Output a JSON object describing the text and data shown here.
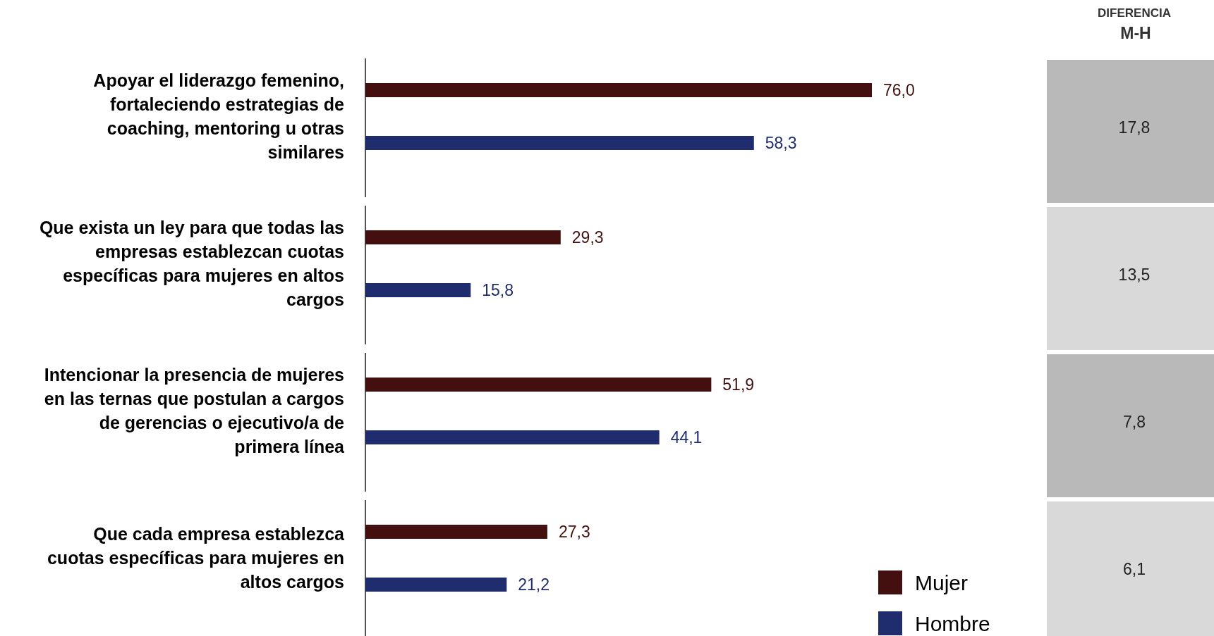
{
  "chart_data": {
    "type": "bar",
    "orientation": "horizontal",
    "categories": [
      "Apoyar el liderazgo femenino, fortaleciendo estrategias de coaching, mentoring u otras similares",
      "Que exista un ley para que todas las empresas establezcan cuotas específicas para mujeres en altos cargos",
      "Intencionar la presencia de mujeres en las ternas que postulan a cargos de gerencias o ejecutivo/a de primera línea",
      "Que cada empresa establezca cuotas específicas para mujeres en altos cargos"
    ],
    "series": [
      {
        "name": "Mujer",
        "color": "#44100f",
        "values": [
          76.0,
          29.3,
          51.9,
          27.3
        ],
        "value_labels": [
          "76,0",
          "29,3",
          "51,9",
          "27,3"
        ]
      },
      {
        "name": "Hombre",
        "color": "#1f2c6e",
        "values": [
          58.3,
          15.8,
          44.1,
          21.2
        ],
        "value_labels": [
          "58,3",
          "15,8",
          "44,1",
          "21,2"
        ]
      }
    ],
    "legend": "bottom right",
    "annotations": [
      "DIFERENCIA",
      "M-H",
      "17,8",
      "13,5",
      "7,8",
      "6,1"
    ]
  }
}
